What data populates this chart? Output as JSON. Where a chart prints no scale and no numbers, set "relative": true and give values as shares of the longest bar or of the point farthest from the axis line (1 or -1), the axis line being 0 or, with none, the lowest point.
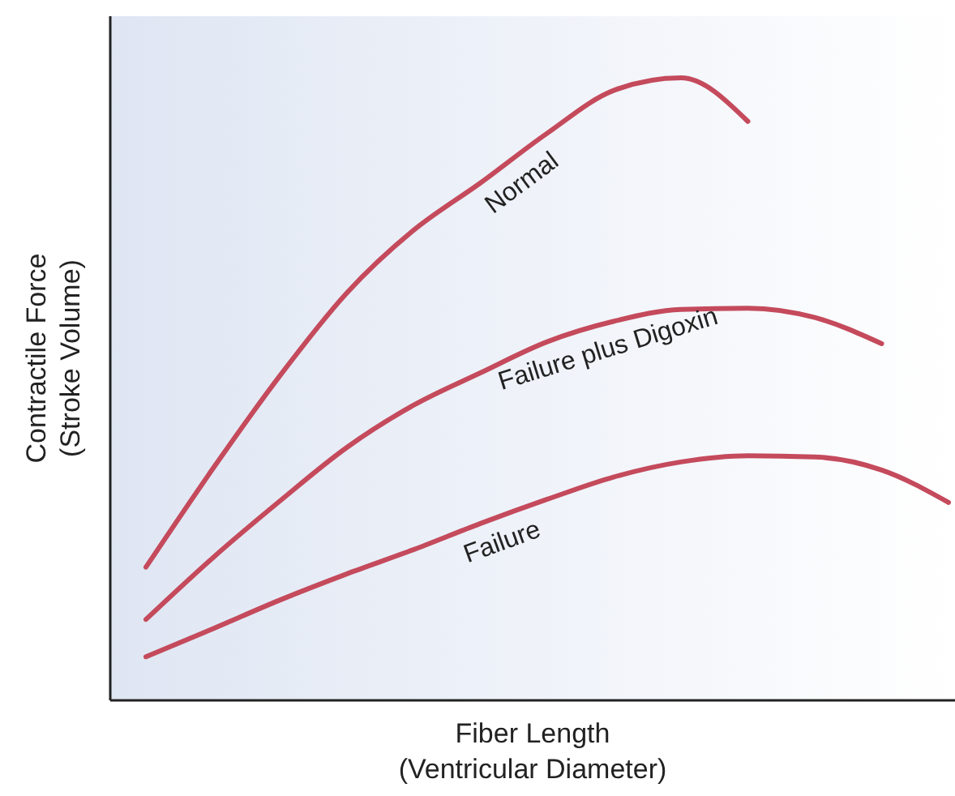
{
  "chart_data": {
    "type": "line",
    "relative": true,
    "xlabel": "Fiber Length\n(Ventricular Diameter)",
    "ylabel": "Contractile Force\n(Stroke Volume)",
    "categories": [
      null,
      null,
      null,
      null,
      null,
      null,
      null,
      null,
      null,
      null,
      null,
      null,
      null
    ],
    "grid": false,
    "marker": "none",
    "line_style": "solid",
    "series": [
      {
        "name": "Normal",
        "color": "#c44a5c",
        "values": [
          0.214,
          0.372,
          0.521,
          0.654,
          0.755,
          0.831,
          0.911,
          0.98,
          1.0,
          0.93,
          null,
          null,
          null
        ]
      },
      {
        "name": "Failure plus Digoxin",
        "color": "#c44a5c",
        "values": [
          0.13,
          0.229,
          0.32,
          0.406,
          0.474,
          0.526,
          0.576,
          0.609,
          0.628,
          0.63,
          0.615,
          0.573,
          null
        ]
      },
      {
        "name": "Failure",
        "color": "#c44a5c",
        "values": [
          0.07,
          0.115,
          0.161,
          0.203,
          0.242,
          0.284,
          0.323,
          0.359,
          0.383,
          0.393,
          0.391,
          0.37,
          0.318
        ]
      }
    ]
  }
}
